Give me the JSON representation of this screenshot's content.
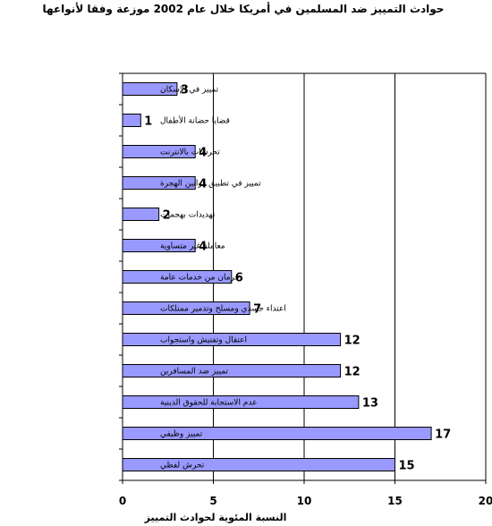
{
  "chart_data": {
    "type": "bar",
    "orientation": "horizontal",
    "title": "حوادث التمييز ضد المسلمين في أمريكا خلال عام 2002 موزعة وفقا لأنواعها",
    "xlabel": "النسبة المئوية لحوادث التمييز",
    "ylabel": "",
    "xlim": [
      0,
      20
    ],
    "xticks": [
      0,
      5,
      10,
      15,
      20
    ],
    "grid": "vertical",
    "bar_color": "#9999ff",
    "categories": [
      "تمييز في الإسكان",
      "قضايا حضانة الأطفال",
      "تحرشات بالانترنت",
      "تمييز في تطبيق قوانين الهجرة",
      "تهديدات بهجمات",
      "معاملة غير متساوية",
      "حرمان من خدمات عامة",
      "اعتداء جسدي ومسلح وتدمير ممتلكات",
      "اعتقال وتفتيش واستجواب",
      "تمييز ضد المسافرين",
      "عدم الاستجابة للحقوق الدينية",
      "تمييز وظيفي",
      "تحرش لفظي"
    ],
    "values": [
      3,
      1,
      4,
      4,
      2,
      4,
      6,
      7,
      12,
      12,
      13,
      17,
      15
    ]
  }
}
